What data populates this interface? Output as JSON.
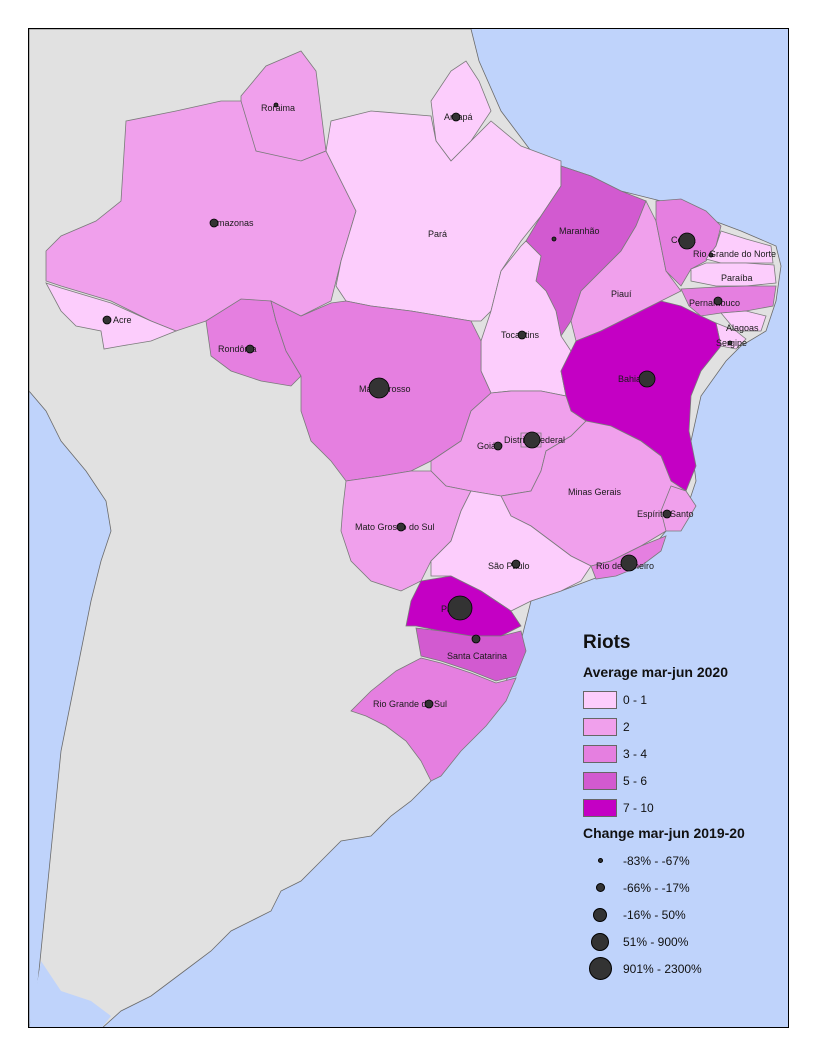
{
  "legend": {
    "title": "Riots",
    "choropleth_title": "Average mar-jun 2020",
    "classes": [
      {
        "label": "0 - 1",
        "color": "#fccdfc"
      },
      {
        "label": "2",
        "color": "#f0a0ec"
      },
      {
        "label": "3 - 4",
        "color": "#e57fe0"
      },
      {
        "label": "5 - 6",
        "color": "#d25ad0"
      },
      {
        "label": "7 - 10",
        "color": "#c400c4"
      }
    ],
    "circle_title": "Change mar-jun 2019-20",
    "circles": [
      {
        "label": "-83% - -67%"
      },
      {
        "label": "-66% - -17%"
      },
      {
        "label": "-16% - 50%"
      },
      {
        "label": "51% - 900%"
      },
      {
        "label": "901% - 2300%"
      }
    ]
  },
  "states": {
    "roraima": "Roraima",
    "amapa": "Amapá",
    "amazonas": "Amazonas",
    "para": "Pará",
    "maranhao": "Maranhão",
    "ceara": "Ceará",
    "rio_grande_do_norte": "Rio Grande do Norte",
    "paraiba": "Paraíba",
    "piaui": "Piauí",
    "pernambuco": "Pernambuco",
    "acre": "Acre",
    "tocantins": "Tocantins",
    "alagoas": "Alagoas",
    "sergipe": "Sergipe",
    "rondonia": "Rondônia",
    "bahia": "Bahia",
    "mato_grosso": "Mato Grosso",
    "goias": "Goiás",
    "distrito_federal": "Distrito Federal",
    "minas_gerais": "Minas Gerais",
    "espirito_santo": "Espírito Santo",
    "mato_grosso_do_sul": "Mato Grosso do Sul",
    "sao_paulo": "São Paulo",
    "rio_de_janeiro": "Rio de Janeiro",
    "parana": "Paraná",
    "santa_catarina": "Santa Catarina",
    "rio_grande_do_sul": "Rio Grande do Sul"
  },
  "colors": {
    "ocean": "#bfd3fb",
    "land": "#e1e1e1",
    "border": "#6b6b6b",
    "circle": "#333333"
  }
}
